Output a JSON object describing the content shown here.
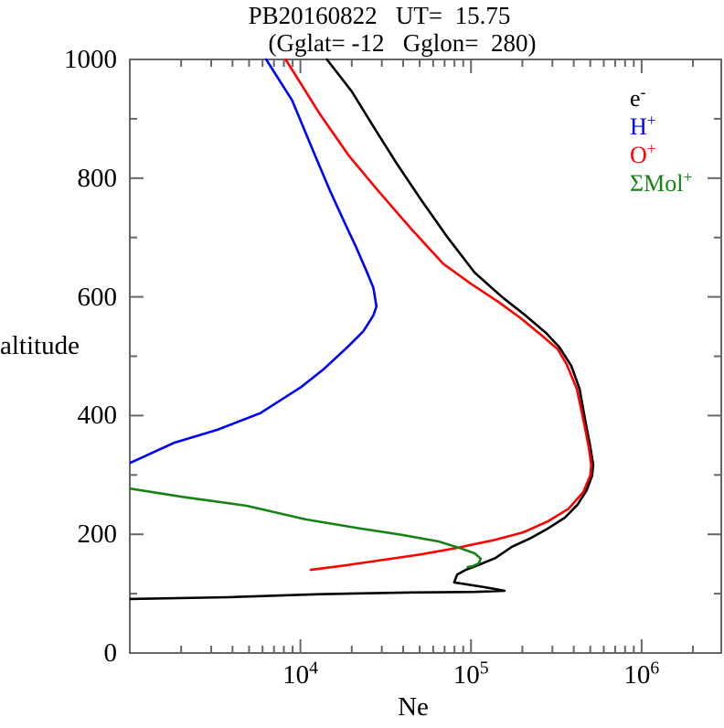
{
  "header": {
    "title": "PB20160822   UT=  15.75",
    "subtitle": "(Gglat= -12   Gglon=  280)"
  },
  "axes": {
    "y": {
      "label": "altitude",
      "tick_labels": [
        "0",
        "200",
        "400",
        "600",
        "800",
        "1000"
      ]
    },
    "x": {
      "label": "Ne",
      "tick_base": "10",
      "tick_exponents": [
        "4",
        "5",
        "6"
      ]
    }
  },
  "legend": [
    {
      "base": "e",
      "sup": "-",
      "color": "#000000"
    },
    {
      "base": "H",
      "sup": "+",
      "color": "#0000ff"
    },
    {
      "base": "O",
      "sup": "+",
      "color": "#ff0000"
    },
    {
      "base": "ΣMol",
      "sup": "+",
      "color": "#168216"
    }
  ],
  "colors": {
    "axis": "#666666",
    "background": "#ffffff"
  },
  "chart_data": {
    "type": "line",
    "title": "PB20160822   UT=  15.75",
    "subtitle": "(Gglat= -12   Gglon=  280)",
    "xlabel": "Ne",
    "ylabel": "altitude",
    "x_scale": "log",
    "xlim": [
      1000,
      2930000
    ],
    "ylim": [
      0,
      1000
    ],
    "x_major_ticks": [
      10000,
      100000,
      1000000
    ],
    "y_major_ticks": [
      0,
      200,
      400,
      600,
      800,
      1000
    ],
    "y_minor_step": 100,
    "grid": false,
    "legend_position": "upper-right-inside",
    "series": [
      {
        "name": "e-",
        "color": "#000000",
        "points": [
          [
            1000,
            91
          ],
          [
            3770,
            94
          ],
          [
            13000,
            99
          ],
          [
            44500,
            102
          ],
          [
            106000,
            103
          ],
          [
            157000,
            105
          ],
          [
            120000,
            111
          ],
          [
            79600,
            119
          ],
          [
            83000,
            132
          ],
          [
            93000,
            140
          ],
          [
            110000,
            148
          ],
          [
            139000,
            160
          ],
          [
            174000,
            179
          ],
          [
            222000,
            193
          ],
          [
            283000,
            210
          ],
          [
            355000,
            228
          ],
          [
            421000,
            250
          ],
          [
            476000,
            274
          ],
          [
            513000,
            299
          ],
          [
            520000,
            317
          ],
          [
            500000,
            348
          ],
          [
            470000,
            388
          ],
          [
            433000,
            445
          ],
          [
            387000,
            484
          ],
          [
            330000,
            515
          ],
          [
            276000,
            539
          ],
          [
            208000,
            569
          ],
          [
            153000,
            599
          ],
          [
            105000,
            641
          ],
          [
            73000,
            700
          ],
          [
            51700,
            761
          ],
          [
            37000,
            823
          ],
          [
            27200,
            884
          ],
          [
            20000,
            946
          ],
          [
            14300,
            1000
          ]
        ]
      },
      {
        "name": "H+",
        "color": "#0000ff",
        "points": [
          [
            1000,
            320
          ],
          [
            1810,
            354
          ],
          [
            3250,
            376
          ],
          [
            5810,
            404
          ],
          [
            10100,
            448
          ],
          [
            13800,
            479
          ],
          [
            18800,
            515
          ],
          [
            23400,
            542
          ],
          [
            26800,
            569
          ],
          [
            27900,
            584
          ],
          [
            26800,
            615
          ],
          [
            24600,
            641
          ],
          [
            21200,
            684
          ],
          [
            18300,
            723
          ],
          [
            15000,
            777
          ],
          [
            12200,
            838
          ],
          [
            8950,
            931
          ],
          [
            6300,
            1000
          ]
        ]
      },
      {
        "name": "O+",
        "color": "#ff0000",
        "points": [
          [
            11500,
            140
          ],
          [
            18800,
            148
          ],
          [
            30700,
            157
          ],
          [
            50300,
            166
          ],
          [
            82500,
            177
          ],
          [
            135000,
            190
          ],
          [
            201000,
            203
          ],
          [
            283000,
            222
          ],
          [
            373000,
            243
          ],
          [
            455000,
            271
          ],
          [
            500000,
            299
          ],
          [
            507000,
            317
          ],
          [
            489000,
            348
          ],
          [
            459000,
            388
          ],
          [
            417000,
            445
          ],
          [
            363000,
            487
          ],
          [
            322000,
            512
          ],
          [
            257000,
            536
          ],
          [
            196000,
            564
          ],
          [
            144000,
            592
          ],
          [
            100000,
            622
          ],
          [
            68600,
            656
          ],
          [
            44500,
            715
          ],
          [
            28900,
            777
          ],
          [
            19200,
            838
          ],
          [
            13000,
            908
          ],
          [
            8200,
            1000
          ]
        ]
      },
      {
        "name": "SigmaMol+",
        "color": "#168216",
        "points": [
          [
            1000,
            277
          ],
          [
            2040,
            263
          ],
          [
            4840,
            248
          ],
          [
            10800,
            225
          ],
          [
            21200,
            211
          ],
          [
            39300,
            199
          ],
          [
            64400,
            188
          ],
          [
            87800,
            176
          ],
          [
            105000,
            168
          ],
          [
            114000,
            159
          ],
          [
            111000,
            151
          ],
          [
            102000,
            146
          ],
          [
            95700,
            145
          ]
        ]
      }
    ]
  }
}
